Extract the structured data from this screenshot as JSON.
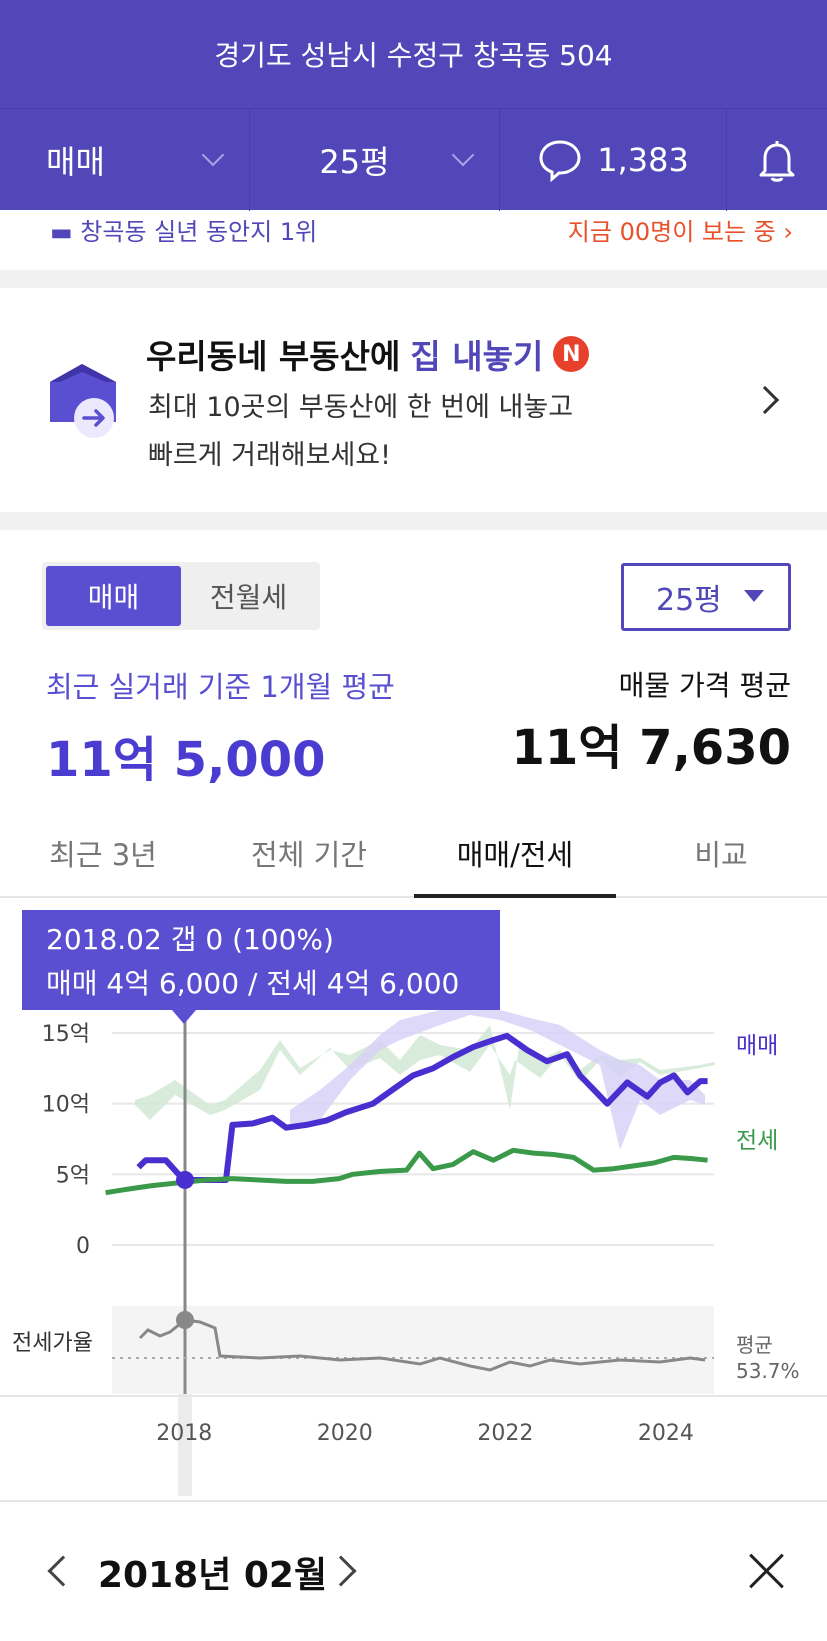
{
  "header": {
    "address": "경기도 성남시 수정구 창곡동 504",
    "trade_type": "매매",
    "size": "25평",
    "comment_count": "1,383"
  },
  "peek": {
    "left": "▬ 창곡동 실년 동안지 1위",
    "right": "지금 00명이 보는 중 ›"
  },
  "promo": {
    "title_prefix": "우리동네 부동산에 ",
    "title_highlight": "집 내놓기",
    "badge": "N",
    "desc_line1": "최대 10곳의 부동산에 한 번에 내놓고",
    "desc_line2": "빠르게 거래해보세요!"
  },
  "price": {
    "seg_sale": "매매",
    "seg_rent": "전월세",
    "size_select": "25평",
    "recent_label": "최근 실거래 기준 1개월 평균",
    "recent_value": "11억 5,000",
    "listing_label": "매물 가격 평균",
    "listing_value": "11억 7,630"
  },
  "tabs": [
    "최근 3년",
    "전체 기간",
    "매매/전세",
    "비교"
  ],
  "tooltip": {
    "line1": "2018.02  갭 0 (100%)",
    "line2": "매매 4억 6,000 / 전세 4억 6,000"
  },
  "bottom": {
    "month": "2018년 02월"
  },
  "colors": {
    "brand": "#5247b8",
    "sale": "#4a2fd0",
    "jeonse": "#3a9a4a",
    "ratio": "#888888"
  },
  "chart_data": {
    "type": "line",
    "x_ticks": [
      "2018",
      "2020",
      "2022",
      "2024"
    ],
    "y_ticks": [
      "15억",
      "10억",
      "5억",
      "0"
    ],
    "ylim": [
      0,
      15
    ],
    "ratio_label": "전세가율",
    "ratio_avg_label": "평균",
    "ratio_avg_value": "53.7%",
    "series": [
      {
        "name": "매매",
        "points": [
          [
            2017.33,
            5.5
          ],
          [
            2017.42,
            6
          ],
          [
            2017.67,
            6
          ],
          [
            2017.83,
            5
          ],
          [
            2018.0,
            4.6
          ],
          [
            2018.17,
            4.6
          ],
          [
            2018.42,
            4.6
          ],
          [
            2018.5,
            8.5
          ],
          [
            2018.75,
            8.6
          ],
          [
            2019.0,
            9
          ],
          [
            2019.17,
            8.3
          ],
          [
            2019.42,
            8.5
          ],
          [
            2019.67,
            8.8
          ],
          [
            2019.92,
            9.4
          ],
          [
            2020.25,
            10
          ],
          [
            2020.5,
            11
          ],
          [
            2020.75,
            12
          ],
          [
            2021.0,
            12.5
          ],
          [
            2021.25,
            13.3
          ],
          [
            2021.5,
            14
          ],
          [
            2021.75,
            14.5
          ],
          [
            2021.92,
            14.8
          ],
          [
            2022.17,
            13.8
          ],
          [
            2022.42,
            13
          ],
          [
            2022.67,
            13.5
          ],
          [
            2022.83,
            12
          ],
          [
            2023.0,
            11
          ],
          [
            2023.17,
            10
          ],
          [
            2023.42,
            11.5
          ],
          [
            2023.67,
            10.5
          ],
          [
            2023.83,
            11.5
          ],
          [
            2024.0,
            12
          ],
          [
            2024.17,
            10.8
          ],
          [
            2024.33,
            11.6
          ],
          [
            2024.42,
            11.6
          ]
        ]
      },
      {
        "name": "전세",
        "points": [
          [
            2016.92,
            3.7
          ],
          [
            2017.25,
            4
          ],
          [
            2017.5,
            4.2
          ],
          [
            2017.83,
            4.4
          ],
          [
            2018.17,
            4.6
          ],
          [
            2018.5,
            4.7
          ],
          [
            2018.83,
            4.6
          ],
          [
            2019.17,
            4.5
          ],
          [
            2019.5,
            4.5
          ],
          [
            2019.83,
            4.7
          ],
          [
            2020.0,
            5
          ],
          [
            2020.33,
            5.2
          ],
          [
            2020.67,
            5.3
          ],
          [
            2020.83,
            6.5
          ],
          [
            2021.0,
            5.4
          ],
          [
            2021.25,
            5.7
          ],
          [
            2021.5,
            6.6
          ],
          [
            2021.75,
            6
          ],
          [
            2022.0,
            6.7
          ],
          [
            2022.25,
            6.5
          ],
          [
            2022.5,
            6.4
          ],
          [
            2022.75,
            6.2
          ],
          [
            2023.0,
            5.3
          ],
          [
            2023.25,
            5.4
          ],
          [
            2023.5,
            5.6
          ],
          [
            2023.75,
            5.8
          ],
          [
            2024.0,
            6.2
          ],
          [
            2024.25,
            6.1
          ],
          [
            2024.42,
            6
          ]
        ]
      }
    ],
    "selected": {
      "x": 2018.08,
      "sale": 4.6,
      "jeonse": 4.6,
      "ratio": 100
    }
  }
}
